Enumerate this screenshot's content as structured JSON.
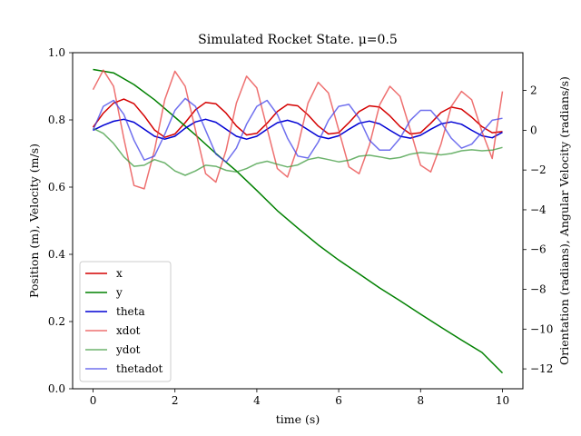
{
  "chart_data": {
    "type": "line",
    "title": "Simulated Rocket State. μ=0.5",
    "xlabel": "time (s)",
    "ylabel_left": "Position (m), Velocity (m/s)",
    "ylabel_right": "Orientation (radians), Angular Velocity (radians/s)",
    "xlim": [
      -0.5,
      10.5
    ],
    "ylim_left": [
      0.0,
      1.0
    ],
    "ylim_right": [
      -13.0,
      3.9
    ],
    "xticks": [
      0,
      2,
      4,
      6,
      8,
      10
    ],
    "yticks_left": [
      "0.0",
      "0.2",
      "0.4",
      "0.6",
      "0.8",
      "1.0"
    ],
    "yticks_right": [
      "2",
      "0",
      "−2",
      "−4",
      "−6",
      "−8",
      "−10",
      "−12"
    ],
    "yticks_right_values": [
      2,
      0,
      -2,
      -4,
      -6,
      -8,
      -10,
      -12
    ],
    "legend_position": "lower-left",
    "grid": false,
    "series": [
      {
        "name": "x",
        "axis": "left",
        "color": "#d40000",
        "alpha": 1.0,
        "x": [
          0,
          0.25,
          0.5,
          0.75,
          1,
          1.25,
          1.5,
          1.75,
          2,
          2.25,
          2.5,
          2.75,
          3,
          3.25,
          3.5,
          3.75,
          4,
          4.25,
          4.5,
          4.75,
          5,
          5.25,
          5.5,
          5.75,
          6,
          6.25,
          6.5,
          6.75,
          7,
          7.25,
          7.5,
          7.75,
          8,
          8.25,
          8.5,
          8.75,
          9,
          9.25,
          9.5,
          9.75,
          10
        ],
        "y": [
          0.778,
          0.82,
          0.85,
          0.862,
          0.848,
          0.812,
          0.77,
          0.748,
          0.758,
          0.792,
          0.83,
          0.852,
          0.848,
          0.82,
          0.782,
          0.755,
          0.76,
          0.79,
          0.825,
          0.846,
          0.842,
          0.815,
          0.782,
          0.758,
          0.762,
          0.792,
          0.825,
          0.842,
          0.838,
          0.812,
          0.78,
          0.758,
          0.762,
          0.79,
          0.822,
          0.838,
          0.832,
          0.808,
          0.78,
          0.762,
          0.765
        ]
      },
      {
        "name": "y",
        "axis": "left",
        "color": "#008000",
        "alpha": 1.0,
        "x": [
          0,
          0.5,
          1,
          1.5,
          2,
          2.5,
          3,
          3.5,
          4,
          4.5,
          5,
          5.5,
          6,
          6.5,
          7,
          7.5,
          8,
          8.5,
          9,
          9.5,
          10
        ],
        "y": [
          0.95,
          0.94,
          0.905,
          0.86,
          0.808,
          0.755,
          0.7,
          0.648,
          0.59,
          0.53,
          0.478,
          0.428,
          0.383,
          0.342,
          0.3,
          0.262,
          0.222,
          0.183,
          0.145,
          0.108,
          0.047
        ]
      },
      {
        "name": "theta",
        "axis": "right",
        "color": "#0000d4",
        "alpha": 1.0,
        "x": [
          0,
          0.25,
          0.5,
          0.75,
          1,
          1.25,
          1.5,
          1.75,
          2,
          2.25,
          2.5,
          2.75,
          3,
          3.25,
          3.5,
          3.75,
          4,
          4.25,
          4.5,
          4.75,
          5,
          5.25,
          5.5,
          5.75,
          6,
          6.25,
          6.5,
          6.75,
          7,
          7.25,
          7.5,
          7.75,
          8,
          8.25,
          8.5,
          8.75,
          9,
          9.25,
          9.5,
          9.75,
          10
        ],
        "y": [
          0.0,
          0.25,
          0.45,
          0.55,
          0.4,
          0.05,
          -0.3,
          -0.45,
          -0.3,
          0.1,
          0.42,
          0.55,
          0.4,
          0.05,
          -0.3,
          -0.45,
          -0.3,
          0.05,
          0.38,
          0.5,
          0.35,
          0.02,
          -0.3,
          -0.42,
          -0.28,
          0.05,
          0.35,
          0.46,
          0.32,
          0.0,
          -0.3,
          -0.4,
          -0.25,
          0.05,
          0.32,
          0.42,
          0.3,
          0.0,
          -0.28,
          -0.38,
          -0.1
        ]
      },
      {
        "name": "xdot",
        "axis": "left",
        "color": "#e84040",
        "alpha": 0.75,
        "x": [
          0,
          0.25,
          0.5,
          0.75,
          1,
          1.25,
          1.5,
          1.75,
          2,
          2.25,
          2.5,
          2.75,
          3,
          3.25,
          3.5,
          3.75,
          4,
          4.25,
          4.5,
          4.75,
          5,
          5.25,
          5.5,
          5.75,
          6,
          6.25,
          6.5,
          6.75,
          7,
          7.25,
          7.5,
          7.75,
          8,
          8.25,
          8.5,
          8.75,
          9,
          9.25,
          9.5,
          9.75,
          10
        ],
        "y": [
          0.89,
          0.948,
          0.9,
          0.745,
          0.605,
          0.595,
          0.71,
          0.86,
          0.945,
          0.9,
          0.77,
          0.64,
          0.615,
          0.71,
          0.85,
          0.93,
          0.895,
          0.775,
          0.655,
          0.63,
          0.72,
          0.85,
          0.912,
          0.88,
          0.77,
          0.66,
          0.64,
          0.725,
          0.845,
          0.9,
          0.87,
          0.77,
          0.665,
          0.645,
          0.728,
          0.84,
          0.885,
          0.86,
          0.765,
          0.685,
          0.885
        ]
      },
      {
        "name": "ydot",
        "axis": "left",
        "color": "#3c9a3c",
        "alpha": 0.75,
        "x": [
          0,
          0.25,
          0.5,
          0.75,
          1,
          1.25,
          1.5,
          1.75,
          2,
          2.25,
          2.5,
          2.75,
          3,
          3.25,
          3.5,
          3.75,
          4,
          4.25,
          4.5,
          4.75,
          5,
          5.25,
          5.5,
          5.75,
          6,
          6.25,
          6.5,
          6.75,
          7,
          7.25,
          7.5,
          7.75,
          8,
          8.25,
          8.5,
          8.75,
          9,
          9.25,
          9.5,
          9.75,
          10
        ],
        "y": [
          0.775,
          0.76,
          0.73,
          0.69,
          0.662,
          0.665,
          0.682,
          0.672,
          0.648,
          0.635,
          0.648,
          0.665,
          0.662,
          0.65,
          0.645,
          0.655,
          0.67,
          0.677,
          0.668,
          0.66,
          0.666,
          0.682,
          0.688,
          0.682,
          0.675,
          0.68,
          0.692,
          0.695,
          0.69,
          0.684,
          0.688,
          0.698,
          0.703,
          0.7,
          0.696,
          0.7,
          0.708,
          0.711,
          0.708,
          0.71,
          0.718
        ]
      },
      {
        "name": "thetadot",
        "axis": "right",
        "color": "#4040e8",
        "alpha": 0.75,
        "x": [
          0,
          0.25,
          0.5,
          0.75,
          1,
          1.25,
          1.5,
          1.75,
          2,
          2.25,
          2.5,
          2.75,
          3,
          3.25,
          3.5,
          3.75,
          4,
          4.25,
          4.5,
          4.75,
          5,
          5.25,
          5.5,
          5.75,
          6,
          6.25,
          6.5,
          6.75,
          7,
          7.25,
          7.5,
          7.75,
          8,
          8.25,
          8.5,
          8.75,
          9,
          9.25,
          9.5,
          9.75,
          10
        ],
        "y": [
          0.0,
          1.2,
          1.5,
          0.8,
          -0.5,
          -1.5,
          -1.3,
          -0.2,
          1.0,
          1.6,
          1.2,
          0.0,
          -1.2,
          -1.6,
          -0.9,
          0.3,
          1.2,
          1.5,
          0.8,
          -0.4,
          -1.3,
          -1.4,
          -0.6,
          0.5,
          1.2,
          1.3,
          0.6,
          -0.5,
          -1.0,
          -1.0,
          -0.4,
          0.5,
          1.0,
          1.0,
          0.4,
          -0.4,
          -0.9,
          -0.7,
          -0.1,
          0.5,
          0.6
        ]
      }
    ]
  }
}
